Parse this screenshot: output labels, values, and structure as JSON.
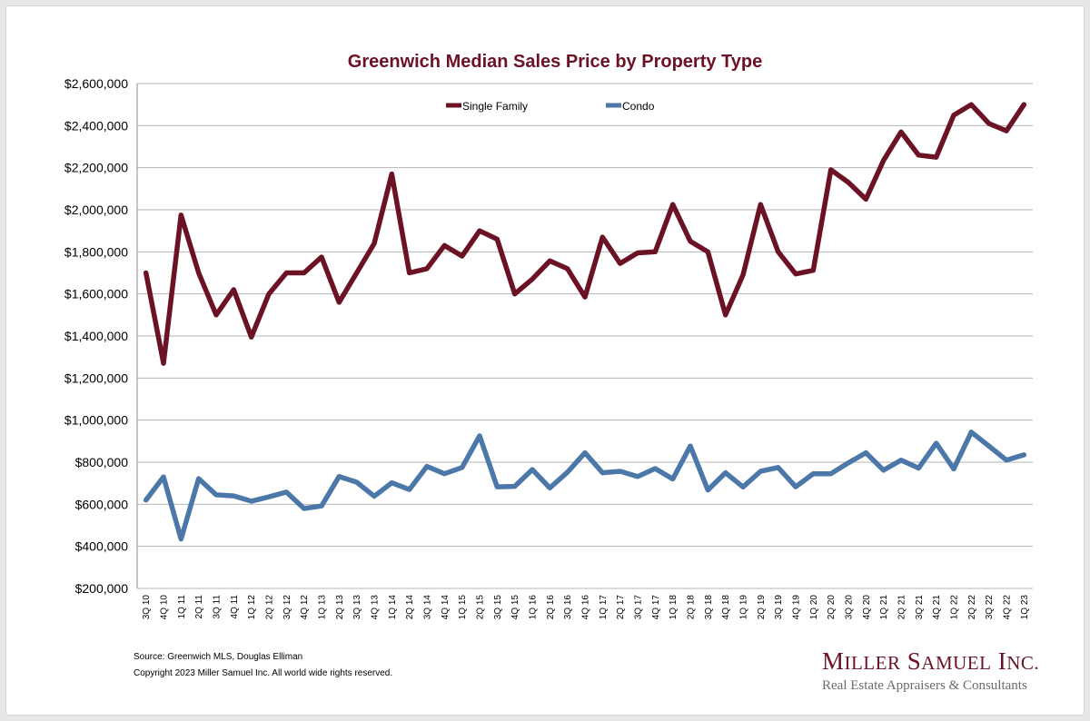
{
  "colors": {
    "single_family": "#6b1325",
    "condo": "#4b77a9",
    "title": "#6b1325",
    "logo": "#6b1325",
    "grid": "#b5b5b5"
  },
  "source_line": "Source: Greenwich MLS, Douglas Elliman",
  "copyright_line": "Copyright 2023 Miller Samuel Inc.  All world wide rights reserved.",
  "logo": {
    "name": "Miller Samuel Inc.",
    "tagline": "Real Estate Appraisers & Consultants"
  },
  "chart_data": {
    "type": "line",
    "title": "Greenwich Median Sales Price by Property Type",
    "xlabel": "",
    "ylabel": "",
    "ylim": [
      200000,
      2600000
    ],
    "ytick_step": 200000,
    "grid": true,
    "legend_placement": "top-center",
    "categories": [
      "3Q 10",
      "4Q 10",
      "1Q 11",
      "2Q 11",
      "3Q 11",
      "4Q 11",
      "1Q 12",
      "2Q 12",
      "3Q 12",
      "4Q 12",
      "1Q 13",
      "2Q 13",
      "3Q 13",
      "4Q 13",
      "1Q 14",
      "2Q 14",
      "3Q 14",
      "4Q 14",
      "1Q 15",
      "2Q 15",
      "3Q 15",
      "4Q 15",
      "1Q 16",
      "2Q 16",
      "3Q 16",
      "4Q 16",
      "1Q 17",
      "2Q 17",
      "3Q 17",
      "4Q 17",
      "1Q 18",
      "2Q 18",
      "3Q 18",
      "4Q 18",
      "1Q 19",
      "2Q 19",
      "3Q 19",
      "4Q 19",
      "1Q 20",
      "2Q 20",
      "3Q 20",
      "4Q 20",
      "1Q 21",
      "2Q 21",
      "3Q 21",
      "4Q 21",
      "1Q 22",
      "2Q 22",
      "3Q 22",
      "4Q 22",
      "1Q 23"
    ],
    "series": [
      {
        "name": "Single Family",
        "color": "#6b1325",
        "values": [
          1700000,
          1270000,
          1975000,
          1700000,
          1500000,
          1620000,
          1395000,
          1600000,
          1700000,
          1700000,
          1775000,
          1560000,
          1700000,
          1840000,
          2170000,
          1700000,
          1720000,
          1830000,
          1780000,
          1900000,
          1860000,
          1600000,
          1670000,
          1757000,
          1720000,
          1585000,
          1870000,
          1745000,
          1795000,
          1800000,
          2025000,
          1850000,
          1800000,
          1500000,
          1690000,
          2025000,
          1800000,
          1695000,
          1712000,
          2190000,
          2130000,
          2050000,
          2235000,
          2370000,
          2260000,
          2250000,
          2450000,
          2500000,
          2410000,
          2375000,
          2500000
        ]
      },
      {
        "name": "Condo",
        "color": "#4b77a9",
        "values": [
          620000,
          730000,
          435000,
          722000,
          645000,
          640000,
          615000,
          635000,
          658000,
          580000,
          592000,
          732000,
          705000,
          638000,
          702000,
          670000,
          780000,
          745000,
          775000,
          925000,
          683000,
          685000,
          765000,
          678000,
          752000,
          845000,
          750000,
          757000,
          732000,
          770000,
          720000,
          877000,
          668000,
          750000,
          682000,
          757000,
          775000,
          683000,
          745000,
          745000,
          797000,
          845000,
          762000,
          810000,
          772000,
          890000,
          768000,
          943000,
          877000,
          810000,
          835000
        ]
      }
    ]
  }
}
